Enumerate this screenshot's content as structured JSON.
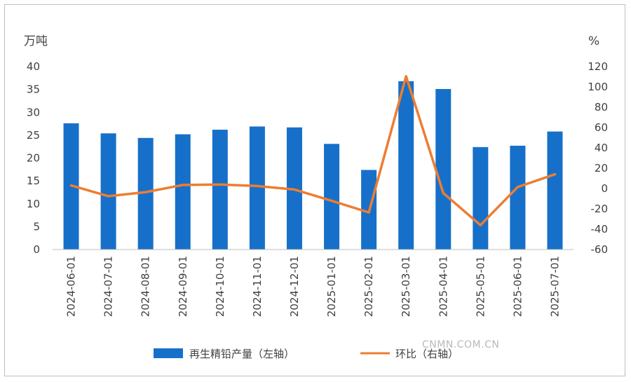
{
  "chart_data": {
    "type": "bar",
    "categories": [
      "2024-06-01",
      "2024-07-01",
      "2024-08-01",
      "2024-09-01",
      "2024-10-01",
      "2024-11-01",
      "2024-12-01",
      "2025-01-01",
      "2025-02-01",
      "2025-03-01",
      "2025-04-01",
      "2025-05-01",
      "2025-06-01",
      "2025-07-01"
    ],
    "series": [
      {
        "name": "再生精铅产量（左轴）",
        "type": "bar",
        "axis": "left",
        "color": "#1670c9",
        "values": [
          27.6,
          25.4,
          24.4,
          25.2,
          26.2,
          26.9,
          26.7,
          23.1,
          17.4,
          36.8,
          35.1,
          22.4,
          22.7,
          25.8
        ]
      },
      {
        "name": "环比（右轴）",
        "type": "line",
        "axis": "right",
        "color": "#ed7d31",
        "values": [
          3.0,
          -7.5,
          -3.5,
          3.5,
          4.0,
          2.5,
          -1.0,
          -12.0,
          -23.5,
          110.5,
          -4.5,
          -36.0,
          1.5,
          14.0
        ]
      }
    ],
    "y_left": {
      "label": "万吨",
      "ylim": [
        0,
        40
      ],
      "ticks": [
        0,
        5,
        10,
        15,
        20,
        25,
        30,
        35,
        40
      ]
    },
    "y_right": {
      "label": "%",
      "ylim": [
        -60,
        120
      ],
      "ticks": [
        -60,
        -40,
        -20,
        0,
        20,
        40,
        60,
        80,
        100,
        120
      ]
    },
    "grid": false,
    "legend": "bottom"
  },
  "watermark": "CNMN.COM.CN"
}
